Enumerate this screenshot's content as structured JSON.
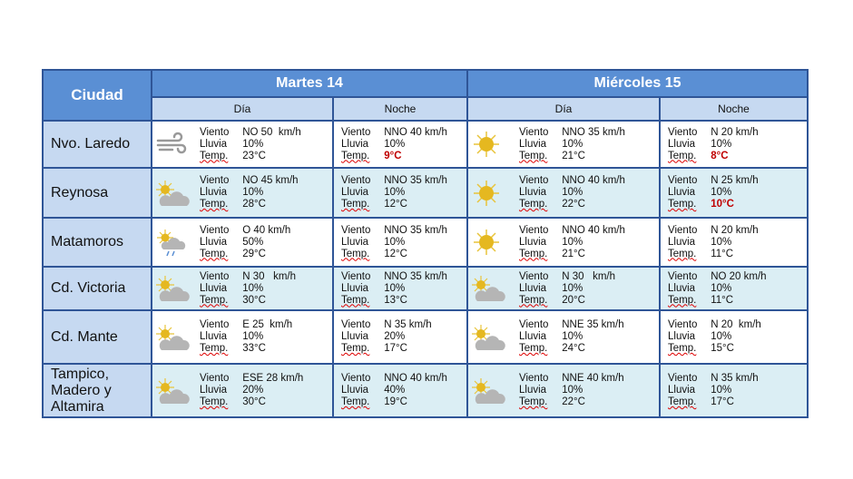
{
  "header": {
    "city": "Ciudad",
    "days": [
      {
        "label": "Martes 14"
      },
      {
        "label": "Miércoles 15"
      }
    ],
    "dia": "Día",
    "noche": "Noche"
  },
  "labels": {
    "viento": "Viento",
    "lluvia": "Lluvia",
    "temp": "Temp."
  },
  "colors": {
    "header": "#5a8fd4",
    "subheader": "#c6d9f1",
    "alt_row": "#dbeef4",
    "cold_temp": "#c00000"
  },
  "rows": [
    {
      "city": "Nvo. Laredo",
      "cells": [
        {
          "icon": "wind-icon",
          "viento": "NO 50  km/h",
          "lluvia": "10%",
          "temp": "23°C"
        },
        {
          "viento": "NNO 40 km/h",
          "lluvia": "10%",
          "temp": "9°C",
          "style": "red"
        },
        {
          "icon": "sun-icon",
          "viento": "NNO 35 km/h",
          "lluvia": "10%",
          "temp": "21°C"
        },
        {
          "viento": "N 20 km/h",
          "lluvia": "10%",
          "temp": "8°C",
          "style": "red"
        }
      ]
    },
    {
      "city": "Reynosa",
      "cells": [
        {
          "icon": "sun-cloud-icon",
          "viento": "NO 45 km/h",
          "lluvia": "10%",
          "temp": "28°C"
        },
        {
          "viento": "NNO 35 km/h",
          "lluvia": "10%",
          "temp": "12°C"
        },
        {
          "icon": "sun-icon",
          "viento": "NNO 40 km/h",
          "lluvia": "10%",
          "temp": "22°C"
        },
        {
          "viento": "N 25 km/h",
          "lluvia": "10%",
          "temp": "10°C",
          "style": "red"
        }
      ]
    },
    {
      "city": "Matamoros",
      "cells": [
        {
          "icon": "sun-cloud-rain-icon",
          "viento": "O 40 km/h",
          "lluvia": "50%",
          "temp": "29°C"
        },
        {
          "viento": "NNO 35 km/h",
          "lluvia": "10%",
          "temp": "12°C"
        },
        {
          "icon": "sun-icon",
          "viento": "NNO 40 km/h",
          "lluvia": "10%",
          "temp": "21°C"
        },
        {
          "viento": "N 20 km/h",
          "lluvia": "10%",
          "temp": "11°C"
        }
      ]
    },
    {
      "city": "Cd. Victoria",
      "cells": [
        {
          "icon": "sun-cloud-icon",
          "viento": "N 30   km/h",
          "lluvia": "10%",
          "temp": "30°C"
        },
        {
          "viento": "NNO 35 km/h",
          "lluvia": "10%",
          "temp": "13°C"
        },
        {
          "icon": "sun-cloud-icon",
          "viento": "N 30   km/h",
          "lluvia": "10%",
          "temp": "20°C"
        },
        {
          "viento": "NO 20 km/h",
          "lluvia": "10%",
          "temp": "11°C"
        }
      ]
    },
    {
      "city": "Cd. Mante",
      "cells": [
        {
          "icon": "sun-cloud-icon",
          "viento": "E 25  km/h",
          "lluvia": "10%",
          "temp": "33°C"
        },
        {
          "viento": "N 35 km/h",
          "lluvia": "20%",
          "temp": "17°C"
        },
        {
          "icon": "sun-cloud-icon",
          "viento": "NNE 35 km/h",
          "lluvia": "10%",
          "temp": "24°C"
        },
        {
          "viento": "N 20  km/h",
          "lluvia": "10%",
          "temp": "15°C"
        }
      ]
    },
    {
      "city": "Tampico, Madero y Altamira",
      "cells": [
        {
          "icon": "sun-cloud-icon",
          "viento": "ESE 28 km/h",
          "lluvia": "20%",
          "temp": "30°C"
        },
        {
          "viento": "NNO 40 km/h",
          "lluvia": "40%",
          "temp": "19°C"
        },
        {
          "icon": "sun-cloud-icon",
          "viento": "NNE 40 km/h",
          "lluvia": "10%",
          "temp": "22°C"
        },
        {
          "viento": "N 35 km/h",
          "lluvia": "10%",
          "temp": "17°C"
        }
      ]
    }
  ]
}
